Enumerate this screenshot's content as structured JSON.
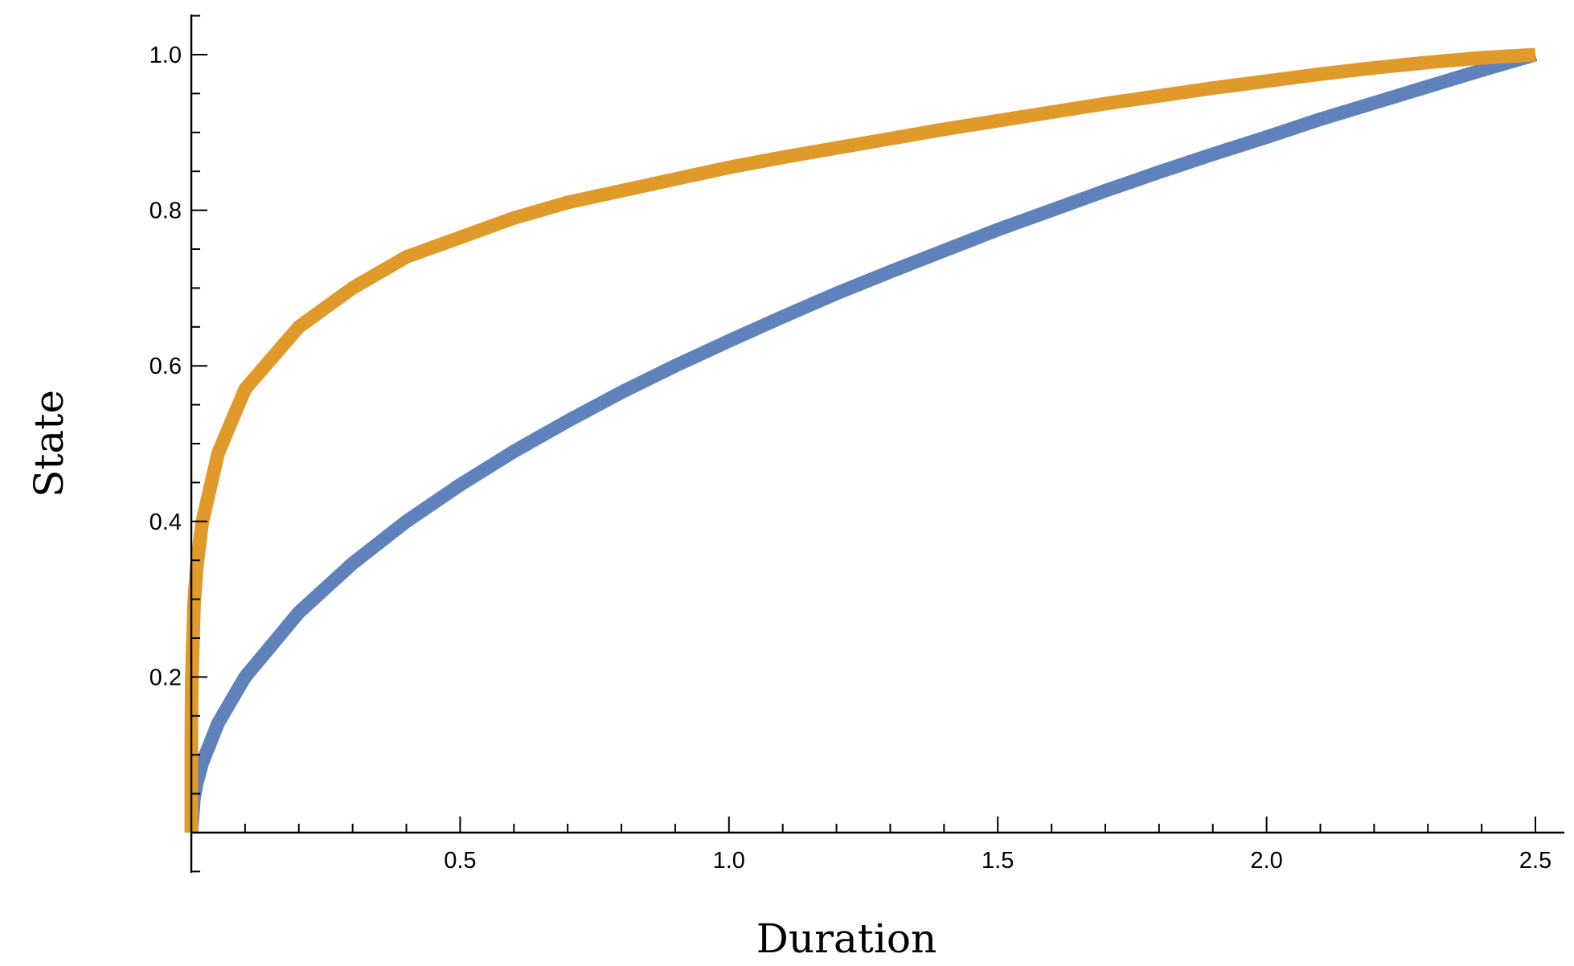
{
  "chart_data": {
    "type": "line",
    "title": "",
    "xlabel": "Duration",
    "ylabel": "State",
    "xlim": [
      0,
      2.5
    ],
    "ylim": [
      0,
      1.0
    ],
    "grid": false,
    "x_ticks": [
      {
        "value": 0.5,
        "label": "0.5"
      },
      {
        "value": 1.0,
        "label": "1.0"
      },
      {
        "value": 1.5,
        "label": "1.5"
      },
      {
        "value": 2.0,
        "label": "2.0"
      },
      {
        "value": 2.5,
        "label": "2.5"
      }
    ],
    "y_ticks": [
      {
        "value": 0.2,
        "label": "0.2"
      },
      {
        "value": 0.4,
        "label": "0.4"
      },
      {
        "value": 0.6,
        "label": "0.6"
      },
      {
        "value": 0.8,
        "label": "0.8"
      },
      {
        "value": 1.0,
        "label": "1.0"
      }
    ],
    "series": [
      {
        "color": "#5f82bc",
        "x": [
          0,
          0.005,
          0.01,
          0.02,
          0.05,
          0.1,
          0.2,
          0.3,
          0.4,
          0.5,
          0.6,
          0.7,
          0.8,
          0.9,
          1.0,
          1.1,
          1.2,
          1.3,
          1.4,
          1.5,
          1.6,
          1.7,
          1.8,
          1.9,
          2.0,
          2.1,
          2.2,
          2.3,
          2.4,
          2.5
        ],
        "y": [
          0,
          0.045,
          0.063,
          0.089,
          0.141,
          0.2,
          0.283,
          0.346,
          0.4,
          0.447,
          0.49,
          0.529,
          0.566,
          0.6,
          0.632,
          0.663,
          0.693,
          0.721,
          0.748,
          0.775,
          0.8,
          0.825,
          0.849,
          0.872,
          0.894,
          0.917,
          0.938,
          0.959,
          0.98,
          1.0
        ]
      },
      {
        "color": "#e09a2a",
        "x": [
          0,
          0.0002,
          0.001,
          0.005,
          0.01,
          0.02,
          0.05,
          0.1,
          0.2,
          0.3,
          0.4,
          0.5,
          0.6,
          0.7,
          0.8,
          0.9,
          1.0,
          1.1,
          1.2,
          1.3,
          1.4,
          1.5,
          1.6,
          1.7,
          1.8,
          1.9,
          2.0,
          2.1,
          2.2,
          2.3,
          2.4,
          2.5
        ],
        "y": [
          0,
          0.136,
          0.2,
          0.293,
          0.341,
          0.398,
          0.488,
          0.57,
          0.65,
          0.7,
          0.74,
          0.765,
          0.79,
          0.81,
          0.825,
          0.84,
          0.855,
          0.868,
          0.88,
          0.892,
          0.904,
          0.915,
          0.926,
          0.937,
          0.947,
          0.957,
          0.966,
          0.975,
          0.983,
          0.99,
          0.996,
          1.0
        ]
      }
    ]
  }
}
